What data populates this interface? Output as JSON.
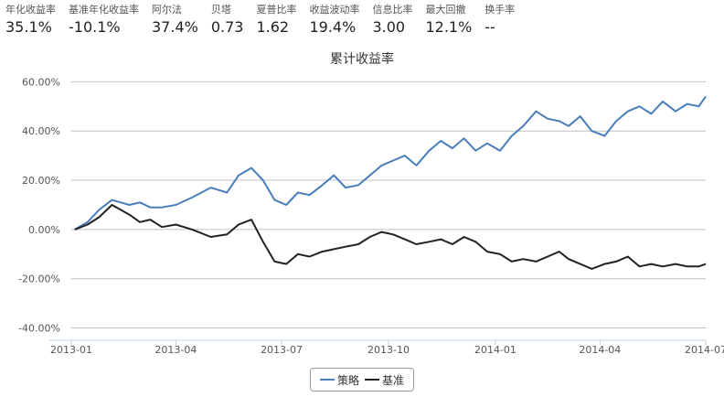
{
  "metrics": [
    {
      "label": "年化收益率",
      "value": "35.1%"
    },
    {
      "label": "基准年化收益率",
      "value": "-10.1%"
    },
    {
      "label": "阿尔法",
      "value": "37.4%"
    },
    {
      "label": "贝塔",
      "value": "0.73"
    },
    {
      "label": "夏普比率",
      "value": "1.62"
    },
    {
      "label": "收益波动率",
      "value": "19.4%"
    },
    {
      "label": "信息比率",
      "value": "3.00"
    },
    {
      "label": "最大回撤",
      "value": "12.1%"
    },
    {
      "label": "换手率",
      "value": "--"
    }
  ],
  "colors": {
    "strategy": "#4a7ebb",
    "benchmark": "#222222",
    "grid": "#c0c0c0",
    "axis": "#c0d0e0"
  },
  "chart_data": {
    "type": "line",
    "title": "累计收益率",
    "xlabel": "",
    "ylabel": "",
    "y_ticks": [
      "60.00%",
      "40.00%",
      "20.00%",
      "0.00%",
      "-20.00%",
      "-40.00%"
    ],
    "ylim": [
      -45,
      62
    ],
    "x_ticks": [
      "2013-01",
      "2013-04",
      "2013-07",
      "2013-10",
      "2014-01",
      "2014-04",
      "2014-07"
    ],
    "xlim": [
      "2013-01",
      "2014-07"
    ],
    "grid": true,
    "legend_position": "bottom-center",
    "series": [
      {
        "name": "策略",
        "x": [
          "2013-01-04",
          "2013-01-15",
          "2013-01-25",
          "2013-02-05",
          "2013-02-20",
          "2013-03-01",
          "2013-03-10",
          "2013-03-20",
          "2013-04-01",
          "2013-04-15",
          "2013-05-01",
          "2013-05-15",
          "2013-05-25",
          "2013-06-05",
          "2013-06-15",
          "2013-06-25",
          "2013-07-05",
          "2013-07-15",
          "2013-07-25",
          "2013-08-05",
          "2013-08-15",
          "2013-08-25",
          "2013-09-05",
          "2013-09-15",
          "2013-09-25",
          "2013-10-05",
          "2013-10-15",
          "2013-10-25",
          "2013-11-05",
          "2013-11-15",
          "2013-11-25",
          "2013-12-05",
          "2013-12-15",
          "2013-12-25",
          "2014-01-05",
          "2014-01-15",
          "2014-01-25",
          "2014-02-05",
          "2014-02-15",
          "2014-02-25",
          "2014-03-05",
          "2014-03-15",
          "2014-03-25",
          "2014-04-05",
          "2014-04-15",
          "2014-04-25",
          "2014-05-05",
          "2014-05-15",
          "2014-05-25",
          "2014-06-05",
          "2014-06-15",
          "2014-06-25",
          "2014-07-01"
        ],
        "values": [
          0,
          3,
          8,
          12,
          10,
          11,
          9,
          9,
          10,
          13,
          17,
          15,
          22,
          25,
          20,
          12,
          10,
          15,
          14,
          18,
          22,
          17,
          18,
          22,
          26,
          28,
          30,
          26,
          32,
          36,
          33,
          37,
          32,
          35,
          32,
          38,
          42,
          48,
          45,
          44,
          42,
          46,
          40,
          38,
          44,
          48,
          50,
          47,
          52,
          48,
          51,
          50,
          54
        ]
      },
      {
        "name": "基准",
        "x": [
          "2013-01-04",
          "2013-01-15",
          "2013-01-25",
          "2013-02-05",
          "2013-02-20",
          "2013-03-01",
          "2013-03-10",
          "2013-03-20",
          "2013-04-01",
          "2013-04-15",
          "2013-05-01",
          "2013-05-15",
          "2013-05-25",
          "2013-06-05",
          "2013-06-15",
          "2013-06-25",
          "2013-07-05",
          "2013-07-15",
          "2013-07-25",
          "2013-08-05",
          "2013-08-15",
          "2013-08-25",
          "2013-09-05",
          "2013-09-15",
          "2013-09-25",
          "2013-10-05",
          "2013-10-15",
          "2013-10-25",
          "2013-11-05",
          "2013-11-15",
          "2013-11-25",
          "2013-12-05",
          "2013-12-15",
          "2013-12-25",
          "2014-01-05",
          "2014-01-15",
          "2014-01-25",
          "2014-02-05",
          "2014-02-15",
          "2014-02-25",
          "2014-03-05",
          "2014-03-15",
          "2014-03-25",
          "2014-04-05",
          "2014-04-15",
          "2014-04-25",
          "2014-05-05",
          "2014-05-15",
          "2014-05-25",
          "2014-06-05",
          "2014-06-15",
          "2014-06-25",
          "2014-07-01"
        ],
        "values": [
          0,
          2,
          5,
          10,
          6,
          3,
          4,
          1,
          2,
          0,
          -3,
          -2,
          2,
          4,
          -5,
          -13,
          -14,
          -10,
          -11,
          -9,
          -8,
          -7,
          -6,
          -3,
          -1,
          -2,
          -4,
          -6,
          -5,
          -4,
          -6,
          -3,
          -5,
          -9,
          -10,
          -13,
          -12,
          -13,
          -11,
          -9,
          -12,
          -14,
          -16,
          -14,
          -13,
          -11,
          -15,
          -14,
          -15,
          -14,
          -15,
          -15,
          -14
        ]
      }
    ]
  },
  "legend": {
    "strategy_label": "策略",
    "benchmark_label": "基准"
  }
}
